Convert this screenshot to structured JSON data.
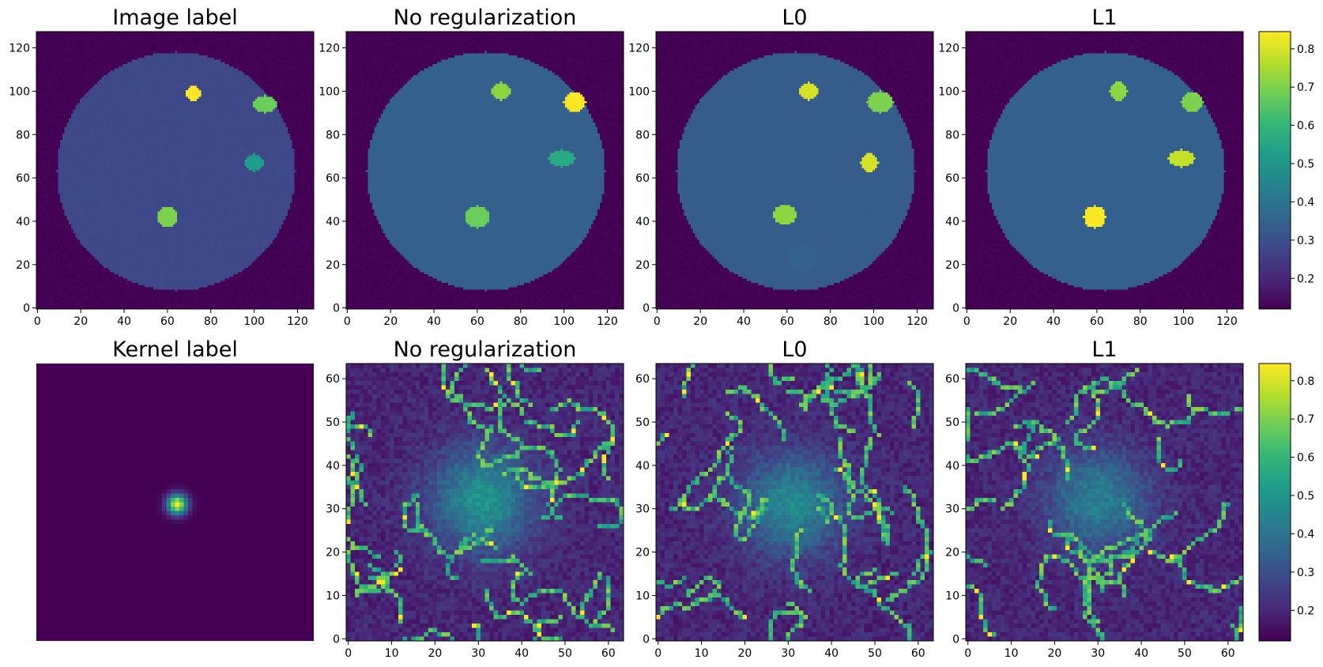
{
  "colors": {
    "viridis": [
      "#440154",
      "#482878",
      "#3e4989",
      "#31688e",
      "#26828e",
      "#1f9e89",
      "#35b779",
      "#6ece58",
      "#b5de2b",
      "#fde725"
    ],
    "noise_seed": 17
  },
  "chart_data": [
    {
      "type": "heatmap",
      "title": "Image label",
      "xticks": [
        0,
        20,
        40,
        60,
        80,
        100,
        120
      ],
      "yticks": [
        0,
        20,
        40,
        60,
        80,
        100,
        120
      ],
      "xlim": [
        -0.5,
        127.5
      ],
      "ylim": [
        127.5,
        -0.5
      ],
      "grid_size": 128,
      "background": 0.12,
      "disk_center": [
        64,
        64
      ],
      "disk_radius": 55,
      "disk_value": 0.28,
      "blobs": [
        {
          "center": [
            72,
            28
          ],
          "radii": [
            3.5,
            3.5
          ],
          "value": 0.84
        },
        {
          "center": [
            105,
            33
          ],
          "radii": [
            5.5,
            4.0
          ],
          "value": 0.68
        },
        {
          "center": [
            100,
            60
          ],
          "radii": [
            4.5,
            4.0
          ],
          "value": 0.52
        },
        {
          "center": [
            60,
            85
          ],
          "radii": [
            4.5,
            4.5
          ],
          "value": 0.7
        }
      ]
    },
    {
      "type": "heatmap",
      "title": "No regularization",
      "xticks": [
        0,
        20,
        40,
        60,
        80,
        100,
        120
      ],
      "yticks": [
        0,
        20,
        40,
        60,
        80,
        100,
        120
      ],
      "xlim": [
        -0.5,
        127.5
      ],
      "ylim": [
        127.5,
        -0.5
      ],
      "grid_size": 128,
      "background": 0.12,
      "disk_center": [
        64,
        64
      ],
      "disk_radius": 55,
      "disk_value": 0.34,
      "blobs": [
        {
          "center": [
            71,
            27
          ],
          "radii": [
            4.5,
            4.0
          ],
          "value": 0.72
        },
        {
          "center": [
            105,
            32
          ],
          "radii": [
            5.0,
            4.5
          ],
          "value": 0.84
        },
        {
          "center": [
            99,
            58
          ],
          "radii": [
            6.0,
            4.0
          ],
          "value": 0.56
        },
        {
          "center": [
            60,
            85
          ],
          "radii": [
            5.5,
            5.0
          ],
          "value": 0.68
        }
      ]
    },
    {
      "type": "heatmap",
      "title": "L0",
      "xticks": [
        0,
        20,
        40,
        60,
        80,
        100,
        120
      ],
      "yticks": [
        0,
        20,
        40,
        60,
        80,
        100,
        120
      ],
      "xlim": [
        -0.5,
        127.5
      ],
      "ylim": [
        127.5,
        -0.5
      ],
      "grid_size": 128,
      "background": 0.12,
      "disk_center": [
        64,
        64
      ],
      "disk_radius": 55,
      "disk_value": 0.33,
      "blobs": [
        {
          "center": [
            70,
            27
          ],
          "radii": [
            4.5,
            4.0
          ],
          "value": 0.8
        },
        {
          "center": [
            103,
            32
          ],
          "radii": [
            6.0,
            5.0
          ],
          "value": 0.7
        },
        {
          "center": [
            98,
            60
          ],
          "radii": [
            4.0,
            4.5
          ],
          "value": 0.8
        },
        {
          "center": [
            59,
            84
          ],
          "radii": [
            5.5,
            4.5
          ],
          "value": 0.72
        },
        {
          "center": [
            67,
            104
          ],
          "radii": [
            7.0,
            6.0
          ],
          "value": 0.36
        }
      ]
    },
    {
      "type": "heatmap",
      "title": "L1",
      "xticks": [
        0,
        20,
        40,
        60,
        80,
        100,
        120
      ],
      "yticks": [
        0,
        20,
        40,
        60,
        80,
        100,
        120
      ],
      "xlim": [
        -0.5,
        127.5
      ],
      "ylim": [
        127.5,
        -0.5
      ],
      "grid_size": 128,
      "background": 0.12,
      "disk_center": [
        64,
        64
      ],
      "disk_radius": 55,
      "disk_value": 0.34,
      "blobs": [
        {
          "center": [
            70,
            27
          ],
          "radii": [
            4.0,
            4.5
          ],
          "value": 0.72
        },
        {
          "center": [
            104,
            32
          ],
          "radii": [
            5.0,
            4.5
          ],
          "value": 0.7
        },
        {
          "center": [
            99,
            58
          ],
          "radii": [
            6.0,
            4.0
          ],
          "value": 0.78
        },
        {
          "center": [
            59,
            85
          ],
          "radii": [
            5.0,
            5.0
          ],
          "value": 0.84
        }
      ]
    },
    {
      "type": "heatmap",
      "title": "Kernel label",
      "xticks": [],
      "yticks": [],
      "xlim": [
        -0.5,
        63.5
      ],
      "ylim": [
        63.5,
        -0.5
      ],
      "grid_size": 64,
      "background": 0.12,
      "peak_center": [
        32,
        32
      ],
      "peak_value": 0.84,
      "peak_sigma": 1.6
    },
    {
      "type": "heatmap",
      "title": "No regularization",
      "xticks": [
        0,
        10,
        20,
        30,
        40,
        50,
        60
      ],
      "yticks": [
        0,
        10,
        20,
        30,
        40,
        50,
        60
      ],
      "xlim": [
        -0.5,
        63.5
      ],
      "ylim": [
        63.5,
        -0.5
      ],
      "grid_size": 64,
      "background": 0.18,
      "center_glow": {
        "center": [
          31,
          31
        ],
        "sigma": 8,
        "value": 0.48
      },
      "worm_count": 32
    },
    {
      "type": "heatmap",
      "title": "L0",
      "xticks": [
        0,
        10,
        20,
        30,
        40,
        50,
        60
      ],
      "yticks": [
        0,
        10,
        20,
        30,
        40,
        50,
        60
      ],
      "xlim": [
        -0.5,
        63.5
      ],
      "ylim": [
        63.5,
        -0.5
      ],
      "grid_size": 64,
      "background": 0.18,
      "center_glow": {
        "center": [
          31,
          32
        ],
        "sigma": 8,
        "value": 0.45
      },
      "worm_count": 30
    },
    {
      "type": "heatmap",
      "title": "L1",
      "xticks": [
        0,
        10,
        20,
        30,
        40,
        50,
        60
      ],
      "yticks": [
        0,
        10,
        20,
        30,
        40,
        50,
        60
      ],
      "xlim": [
        -0.5,
        63.5
      ],
      "ylim": [
        63.5,
        -0.5
      ],
      "grid_size": 64,
      "background": 0.18,
      "center_glow": {
        "center": [
          30,
          31
        ],
        "sigma": 8,
        "value": 0.42
      },
      "worm_count": 28
    }
  ],
  "colorbars": [
    {
      "vmin": 0.12,
      "vmax": 0.845,
      "ticks": [
        0.2,
        0.3,
        0.4,
        0.5,
        0.6,
        0.7,
        0.8
      ]
    },
    {
      "vmin": 0.12,
      "vmax": 0.845,
      "ticks": [
        0.2,
        0.3,
        0.4,
        0.5,
        0.6,
        0.7,
        0.8
      ]
    }
  ]
}
